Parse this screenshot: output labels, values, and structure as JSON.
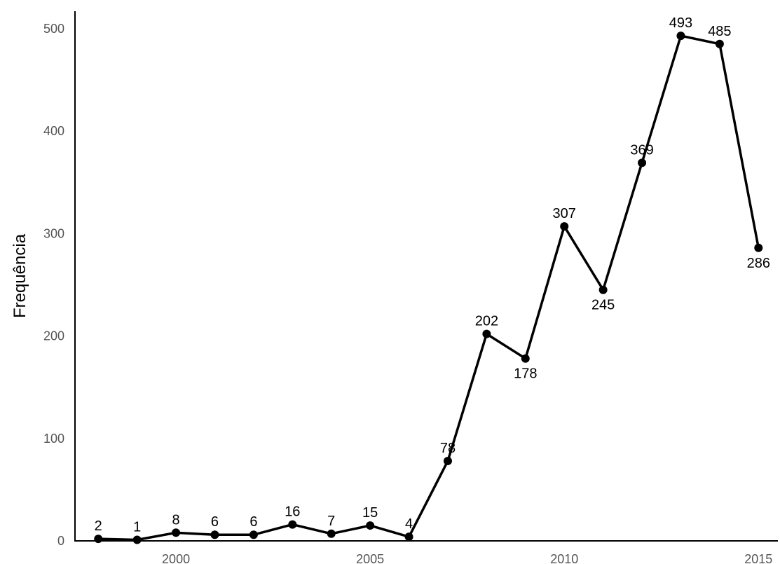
{
  "chart_data": {
    "type": "line",
    "title": "",
    "xlabel": "",
    "ylabel": "Frequência",
    "x": [
      1998,
      1999,
      2000,
      2001,
      2002,
      2003,
      2004,
      2005,
      2006,
      2007,
      2008,
      2009,
      2010,
      2011,
      2012,
      2013,
      2014,
      2015
    ],
    "series": [
      {
        "values": [
          2,
          1,
          8,
          6,
          6,
          16,
          7,
          15,
          4,
          78,
          202,
          178,
          307,
          245,
          369,
          493,
          485,
          286
        ]
      }
    ],
    "x_ticks": [
      "2000",
      "2005",
      "2010",
      "2015"
    ],
    "y_ticks": [
      "0",
      "100",
      "200",
      "300",
      "400",
      "500"
    ],
    "xlim": [
      1997.4,
      2015.5
    ],
    "ylim": [
      0,
      517
    ],
    "grid": false,
    "legend": "none",
    "line_color": "#000000",
    "axis_color": "#000000",
    "tick_color": "#555555"
  }
}
